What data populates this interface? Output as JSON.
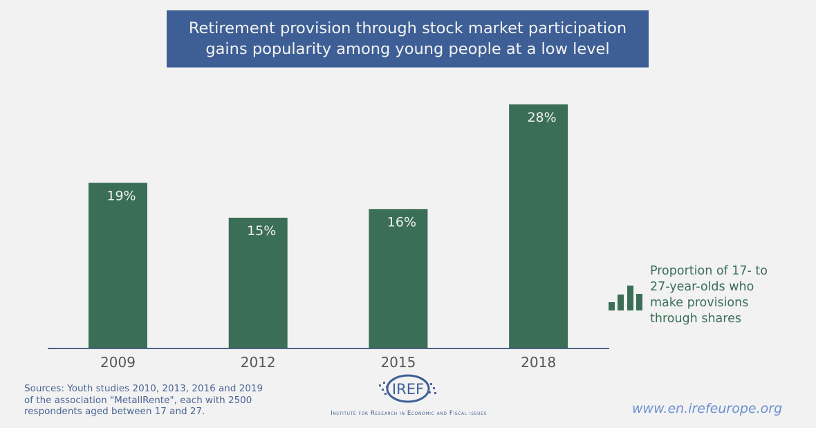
{
  "header": {
    "title_line1": "Retirement provision through stock market participation",
    "title_line2": "gains popularity among young people at a low level"
  },
  "chart_data": {
    "type": "bar",
    "title": "Retirement provision through stock market participation gains popularity among young people at a low level",
    "categories": [
      "2009",
      "2012",
      "2015",
      "2018"
    ],
    "values": [
      19,
      15,
      16,
      28
    ],
    "value_labels": [
      "19%",
      "15%",
      "16%",
      "28%"
    ],
    "unit": "%",
    "xlabel": "",
    "ylabel": "",
    "ylim": [
      0,
      28
    ],
    "grid": false,
    "legend": {
      "position": "right",
      "entries": [
        "Proportion of 17- to 27-year-olds who make provisions through shares"
      ]
    },
    "colors": {
      "bar": "#3a6e56",
      "axis": "#4d6382",
      "label": "#f0f0f0",
      "tick": "#555555"
    }
  },
  "legend": {
    "text": "Proportion of 17- to\n27-year-olds who\nmake provisions\nthrough shares",
    "icon": "bar-chart-icon"
  },
  "footer": {
    "sources": "Sources: Youth studies 2010, 2013, 2016 and 2019\nof the association \"MetallRente\", each with 2500\nrespondents aged between 17 and 27.",
    "logo_text": "IREF",
    "logo_subtitle": "Institute for Research in Economic and Fiscal issues",
    "url": "www.en.irefeurope.org"
  }
}
